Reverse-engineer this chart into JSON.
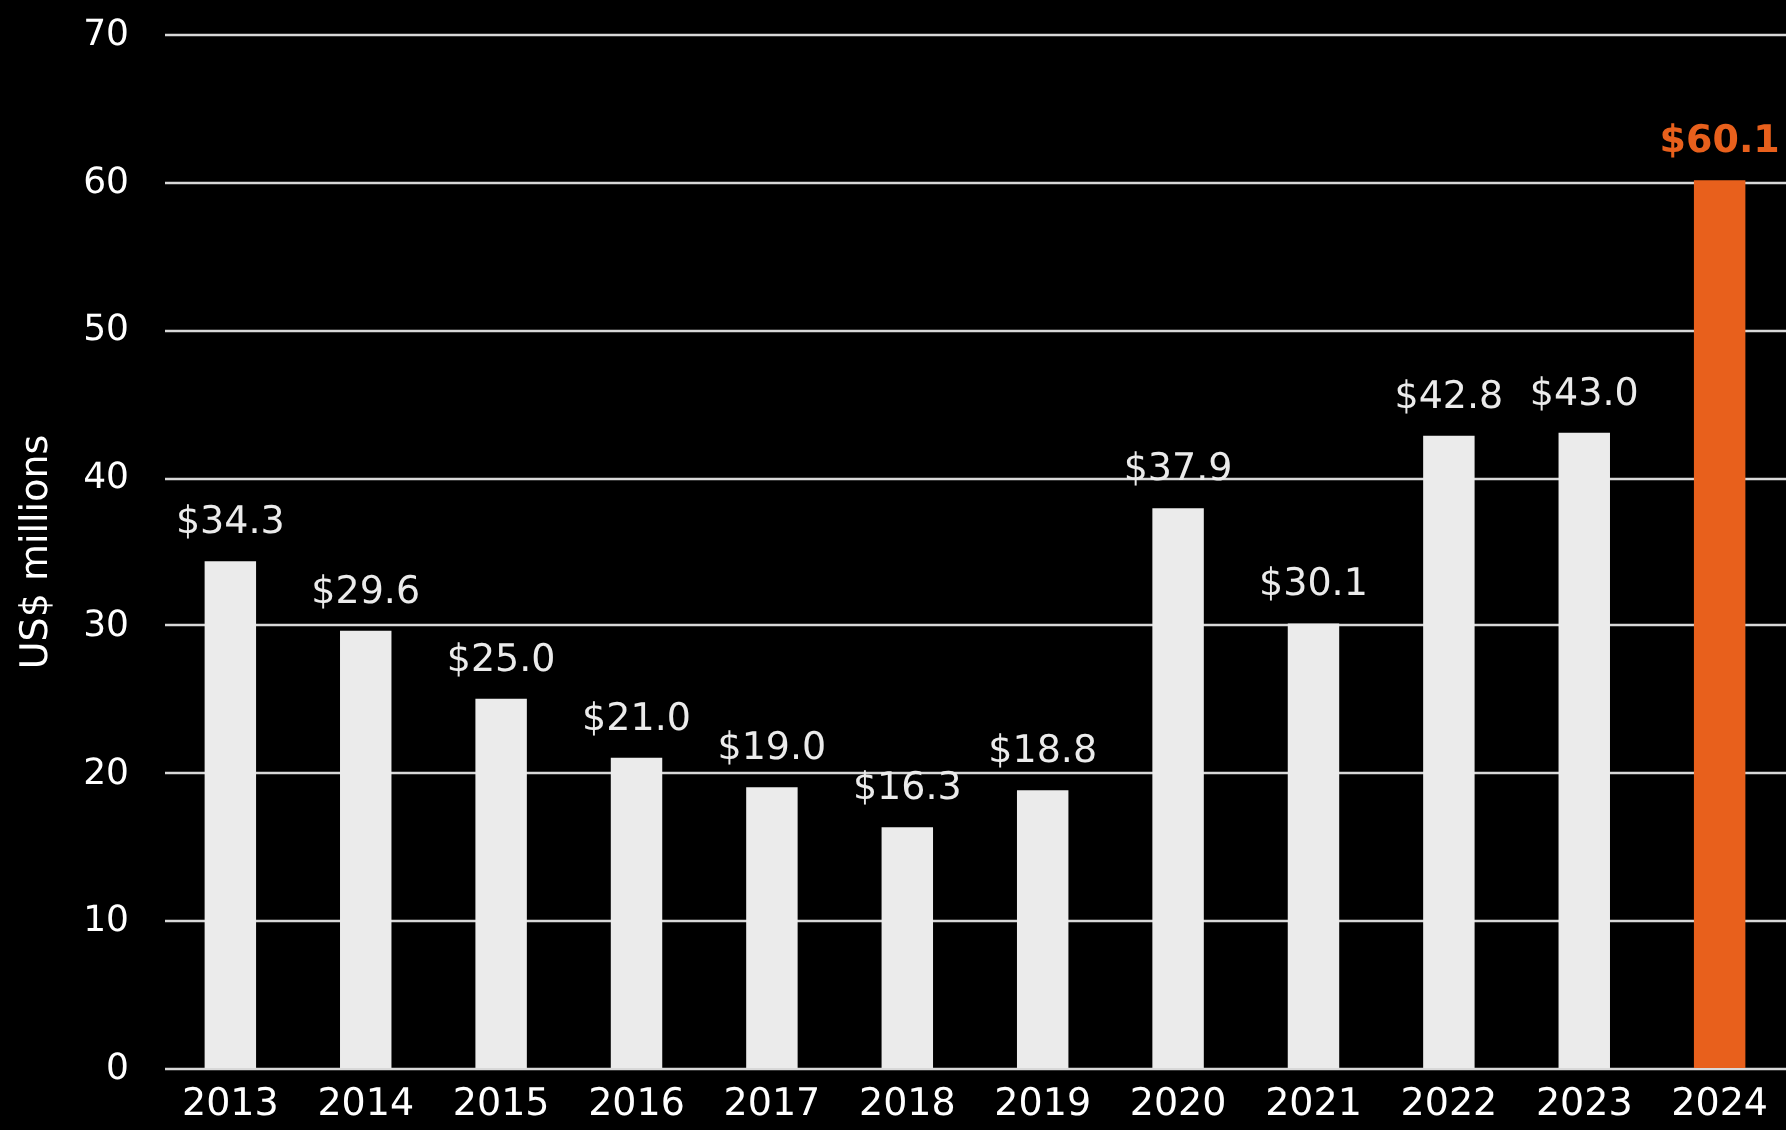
{
  "chart_data": {
    "type": "bar",
    "ylabel": "US$ millions",
    "categories": [
      "2013",
      "2014",
      "2015",
      "2016",
      "2017",
      "2018",
      "2019",
      "2020",
      "2021",
      "2022",
      "2023",
      "2024"
    ],
    "values": [
      34.3,
      29.6,
      25.0,
      21.0,
      19.0,
      16.3,
      18.8,
      37.9,
      30.1,
      42.8,
      43.0,
      60.1
    ],
    "value_labels": [
      "$34.3",
      "$29.6",
      "$25.0",
      "$21.0",
      "$19.0",
      "$16.3",
      "$18.8",
      "$37.9",
      "$30.1",
      "$42.8",
      "$43.0",
      "$60.1"
    ],
    "colors": [
      "#ebebeb",
      "#ebebeb",
      "#ebebeb",
      "#ebebeb",
      "#ebebeb",
      "#ebebeb",
      "#ebebeb",
      "#ebebeb",
      "#ebebeb",
      "#ebebeb",
      "#ebebeb",
      "#e8601c"
    ],
    "ylim": [
      0,
      70
    ],
    "yticks": [
      0,
      10,
      20,
      30,
      40,
      50,
      60,
      70
    ],
    "grid": "y"
  }
}
